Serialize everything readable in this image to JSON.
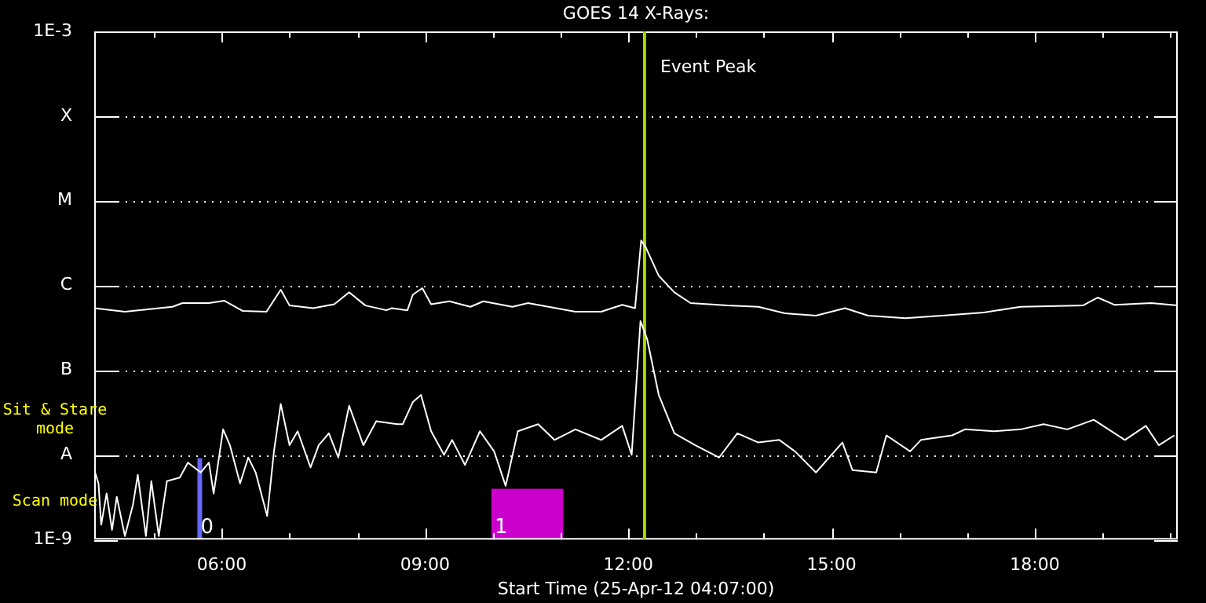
{
  "chart_data": {
    "type": "line",
    "title": "GOES 14 X-Rays:",
    "xlabel": "Start Time (25-Apr-12 04:07:00)",
    "log": "y",
    "grid": "y",
    "legend": false,
    "marker": "none",
    "line_style": "solid",
    "xlim": [
      4.117,
      20.11
    ],
    "xticks": [
      {
        "value": 5,
        "label": null
      },
      {
        "value": 6,
        "label": "06:00"
      },
      {
        "value": 7,
        "label": null
      },
      {
        "value": 8,
        "label": null
      },
      {
        "value": 9,
        "label": "09:00"
      },
      {
        "value": 10,
        "label": null
      },
      {
        "value": 11,
        "label": null
      },
      {
        "value": 12,
        "label": "12:00"
      },
      {
        "value": 13,
        "label": null
      },
      {
        "value": 14,
        "label": null
      },
      {
        "value": 15,
        "label": "15:00"
      },
      {
        "value": 16,
        "label": null
      },
      {
        "value": 17,
        "label": null
      },
      {
        "value": 18,
        "label": "18:00"
      },
      {
        "value": 19,
        "label": null
      },
      {
        "value": 20,
        "label": null
      }
    ],
    "ylim": [
      1e-09,
      0.001
    ],
    "yticks": [
      {
        "value": 1e-09,
        "label": "1E-9"
      },
      {
        "value": 1e-08,
        "label": "A"
      },
      {
        "value": 1e-07,
        "label": "B"
      },
      {
        "value": 1e-06,
        "label": "C"
      },
      {
        "value": 1e-05,
        "label": "M"
      },
      {
        "value": 0.0001,
        "label": "X"
      },
      {
        "value": 0.001,
        "label": "1E-3"
      }
    ],
    "series": [
      {
        "color": "#ffffff",
        "x": [
          4.12,
          4.57,
          5.27,
          5.42,
          5.81,
          6.04,
          6.31,
          6.66,
          6.87,
          7.0,
          7.35,
          7.66,
          7.88,
          8.12,
          8.43,
          8.51,
          8.74,
          8.82,
          8.96,
          9.09,
          9.36,
          9.67,
          9.86,
          10.29,
          10.52,
          11.22,
          11.6,
          11.91,
          12.1,
          12.19,
          12.26,
          12.45,
          12.68,
          12.92,
          13.46,
          13.92,
          14.31,
          14.77,
          15.2,
          15.54,
          16.09,
          16.63,
          17.25,
          17.79,
          18.71,
          18.93,
          19.18,
          19.72,
          20.11
        ],
        "values": [
          5.4e-07,
          4.9e-07,
          5.6e-07,
          6.2e-07,
          6.2e-07,
          6.6e-07,
          5e-07,
          4.9e-07,
          8.9e-07,
          5.8e-07,
          5.4e-07,
          6e-07,
          8.3e-07,
          5.8e-07,
          5.1e-07,
          5.4e-07,
          5.1e-07,
          7.8e-07,
          9.3e-07,
          6e-07,
          6.5e-07,
          5.6e-07,
          6.5e-07,
          5.6e-07,
          6.2e-07,
          4.9e-07,
          4.9e-07,
          5.9e-07,
          5.4e-07,
          3.4e-06,
          2.8e-06,
          1.3e-06,
          8.3e-07,
          6.2e-07,
          5.8e-07,
          5.6e-07,
          4.7e-07,
          4.4e-07,
          5.4e-07,
          4.4e-07,
          4.1e-07,
          4.4e-07,
          4.8e-07,
          5.6e-07,
          5.8e-07,
          7.2e-07,
          5.9e-07,
          6.2e-07,
          5.8e-07
        ]
      },
      {
        "color": "#ffffff",
        "x": [
          4.12,
          4.18,
          4.22,
          4.3,
          4.38,
          4.45,
          4.57,
          4.69,
          4.76,
          4.88,
          4.96,
          5.07,
          5.19,
          5.38,
          5.5,
          5.69,
          5.81,
          5.88,
          6.02,
          6.12,
          6.27,
          6.39,
          6.5,
          6.67,
          6.77,
          6.87,
          7.0,
          7.12,
          7.31,
          7.43,
          7.58,
          7.72,
          7.88,
          8.09,
          8.28,
          8.59,
          8.67,
          8.82,
          8.94,
          9.09,
          9.28,
          9.4,
          9.59,
          9.81,
          10.02,
          10.19,
          10.37,
          10.67,
          10.91,
          11.22,
          11.6,
          11.91,
          12.05,
          12.18,
          12.28,
          12.45,
          12.68,
          12.99,
          13.34,
          13.61,
          13.92,
          14.23,
          14.46,
          14.77,
          15.16,
          15.31,
          15.66,
          15.81,
          16.16,
          16.32,
          16.78,
          16.97,
          17.4,
          17.79,
          18.13,
          18.48,
          18.87,
          19.33,
          19.64,
          19.83,
          20.06
        ],
        "values": [
          6.6e-09,
          4.6e-09,
          1.5e-09,
          3.5e-09,
          1.3e-09,
          3.2e-09,
          1.1e-09,
          2.6e-09,
          5.8e-09,
          1.1e-09,
          4.9e-09,
          1.1e-09,
          4.9e-09,
          5.4e-09,
          8.1e-09,
          6.2e-09,
          8.1e-09,
          3.5e-09,
          2e-08,
          1.3e-08,
          4.6e-09,
          9.3e-09,
          6.2e-09,
          1.9e-09,
          1.1e-08,
          4e-08,
          1.3e-08,
          1.9e-08,
          7.1e-09,
          1.3e-08,
          1.8e-08,
          9.3e-09,
          3.8e-08,
          1.3e-08,
          2.5e-08,
          2.3e-08,
          2.3e-08,
          4.2e-08,
          5.1e-08,
          1.9e-08,
          1e-08,
          1.5e-08,
          7.6e-09,
          1.9e-08,
          1.1e-08,
          4.3e-09,
          1.9e-08,
          2.3e-08,
          1.5e-08,
          2e-08,
          1.5e-08,
          2.2e-08,
          1e-08,
          3.8e-07,
          2.3e-07,
          5.1e-08,
          1.8e-08,
          1.3e-08,
          9.3e-09,
          1.8e-08,
          1.4e-08,
          1.5e-08,
          1.1e-08,
          6.2e-09,
          1.4e-08,
          6.6e-09,
          6.2e-09,
          1.7e-08,
          1.1e-08,
          1.5e-08,
          1.7e-08,
          2e-08,
          1.9e-08,
          2e-08,
          2.3e-08,
          2e-08,
          2.6e-08,
          1.5e-08,
          2.2e-08,
          1.3e-08,
          1.7e-08
        ]
      }
    ],
    "ref_lines": [
      {
        "axis": "x",
        "value": 12.24,
        "label": "Event Peak",
        "color": "#a8d800"
      }
    ],
    "bands": [
      {
        "axis": "x",
        "from": 5.64,
        "to": 5.7,
        "label": "0",
        "color": "#6666ff"
      },
      {
        "axis": "x",
        "from": 9.98,
        "to": 11.04,
        "label": "1",
        "color": "#cc00cc"
      }
    ],
    "annotations": [
      "Sit & Stare mode",
      "Scan mode"
    ]
  }
}
